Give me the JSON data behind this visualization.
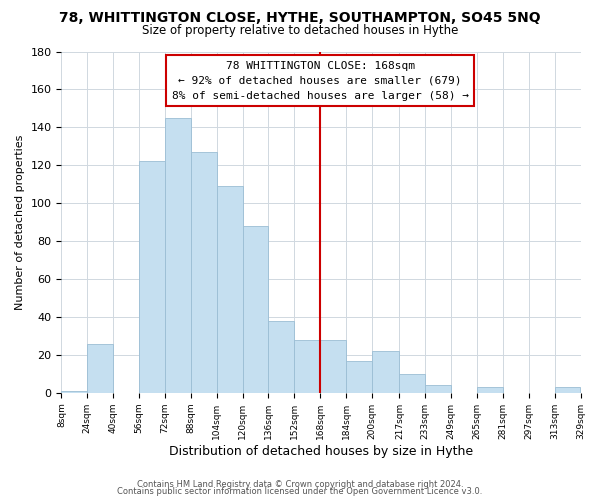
{
  "title": "78, WHITTINGTON CLOSE, HYTHE, SOUTHAMPTON, SO45 5NQ",
  "subtitle": "Size of property relative to detached houses in Hythe",
  "xlabel": "Distribution of detached houses by size in Hythe",
  "ylabel": "Number of detached properties",
  "bin_edges": [
    8,
    24,
    40,
    56,
    72,
    88,
    104,
    120,
    136,
    152,
    168,
    184,
    200,
    217,
    233,
    249,
    265,
    281,
    297,
    313,
    329
  ],
  "bin_labels": [
    "8sqm",
    "24sqm",
    "40sqm",
    "56sqm",
    "72sqm",
    "88sqm",
    "104sqm",
    "120sqm",
    "136sqm",
    "152sqm",
    "168sqm",
    "184sqm",
    "200sqm",
    "217sqm",
    "233sqm",
    "249sqm",
    "265sqm",
    "281sqm",
    "297sqm",
    "313sqm",
    "329sqm"
  ],
  "bar_heights": [
    1,
    26,
    0,
    122,
    145,
    127,
    109,
    88,
    38,
    28,
    28,
    17,
    22,
    10,
    4,
    0,
    3,
    0,
    0,
    3
  ],
  "bar_color": "#c5dff0",
  "bar_edge_color": "#9bbdd4",
  "vline_x": 168,
  "vline_color": "#cc0000",
  "annotation_title": "78 WHITTINGTON CLOSE: 168sqm",
  "annotation_line1": "← 92% of detached houses are smaller (679)",
  "annotation_line2": "8% of semi-detached houses are larger (58) →",
  "annotation_box_color": "#ffffff",
  "annotation_box_edge": "#cc0000",
  "ylim": [
    0,
    180
  ],
  "yticks": [
    0,
    20,
    40,
    60,
    80,
    100,
    120,
    140,
    160,
    180
  ],
  "footer1": "Contains HM Land Registry data © Crown copyright and database right 2024.",
  "footer2": "Contains public sector information licensed under the Open Government Licence v3.0.",
  "background_color": "#ffffff",
  "grid_color": "#d0d8e0"
}
